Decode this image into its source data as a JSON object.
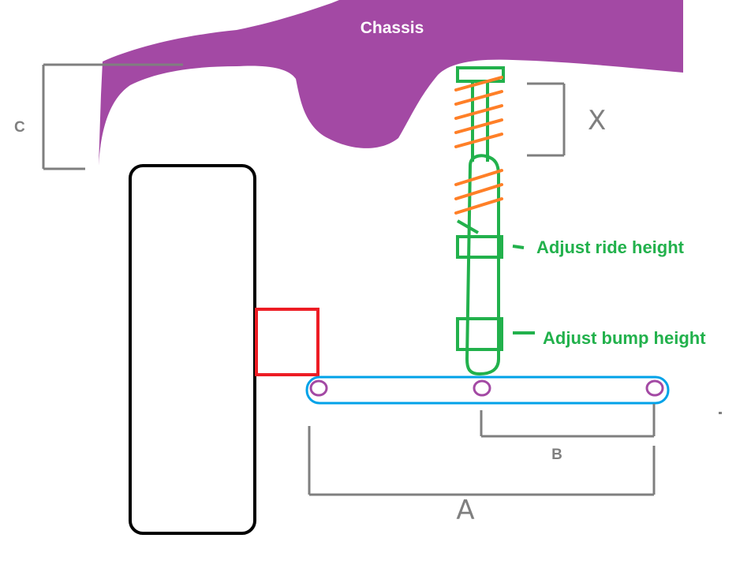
{
  "labels": {
    "chassis": "Chassis",
    "ride_height": "Adjust ride height",
    "bump_height": "Adjust bump height",
    "dim_a": "A",
    "dim_b": "B",
    "dim_c": "C",
    "dim_x": "X"
  },
  "colors": {
    "chassis": "#a349a4",
    "shock": "#22b14c",
    "spring": "#ff7f27",
    "arm": "#00a2e8",
    "pivot": "#a349a4",
    "upright": "#ed1c24",
    "wheel": "#000000",
    "dimension": "#7f7f7f"
  }
}
